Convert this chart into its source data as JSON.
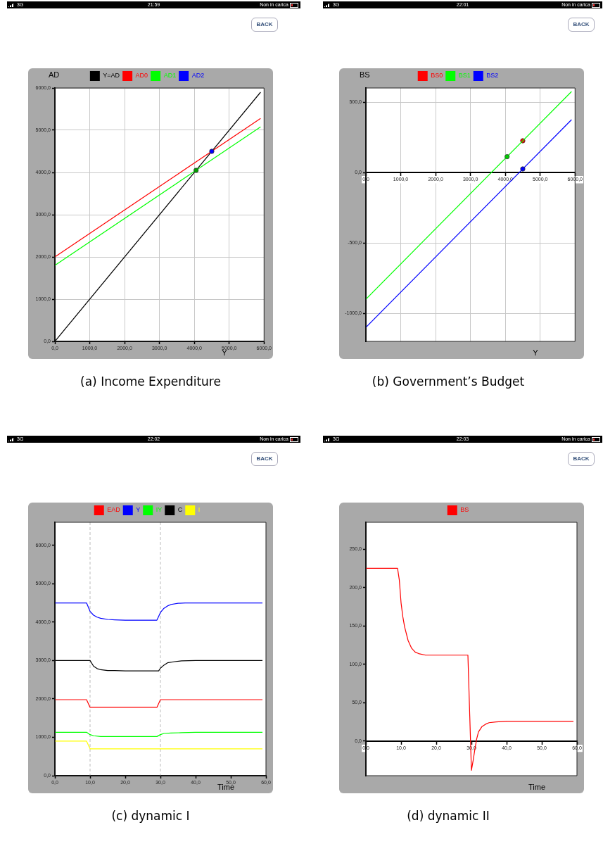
{
  "chart_data": [
    {
      "type": "line",
      "title": "(a) Income Expenditure",
      "xlabel": "Y",
      "ylabel": "AD",
      "annotations": [
        "3G",
        "21:59",
        "Non in carica",
        "BACK"
      ],
      "series": [
        {
          "name": "Y=AD",
          "color": "#000000",
          "x": [
            0,
            5900
          ],
          "values": [
            0,
            5900
          ]
        },
        {
          "name": "AD0",
          "color": "#ff0000",
          "x": [
            0,
            5900
          ],
          "values": [
            2000,
            5280
          ]
        },
        {
          "name": "AD1",
          "color": "#00ff00",
          "x": [
            0,
            5900
          ],
          "values": [
            1800,
            5080
          ]
        },
        {
          "type": "scatter",
          "color": "#00a000",
          "x": [
            4050
          ],
          "values": [
            4050
          ]
        },
        {
          "name": "AD2",
          "type": "scatter",
          "color": "#0000ff",
          "x": [
            4500
          ],
          "values": [
            4500
          ]
        }
      ],
      "xlim": [
        0,
        6000
      ],
      "xticks": [
        {
          "value": 0,
          "label": "0,0"
        },
        {
          "value": 1000,
          "label": "1000,0"
        },
        {
          "value": 2000,
          "label": "2000,0"
        },
        {
          "value": 3000,
          "label": "3000,0"
        },
        {
          "value": 4000,
          "label": "4000,0"
        },
        {
          "value": 5000,
          "label": "5000,0"
        },
        {
          "value": 6000,
          "label": "6000,0"
        }
      ],
      "ylim": [
        0,
        6000
      ],
      "yticks": [
        {
          "value": 0,
          "label": "0,0"
        },
        {
          "value": 1000,
          "label": "1000,0"
        },
        {
          "value": 2000,
          "label": "2000,0"
        },
        {
          "value": 3000,
          "label": "3000,0"
        },
        {
          "value": 4000,
          "label": "4000,0"
        },
        {
          "value": 5000,
          "label": "5000,0"
        },
        {
          "value": 6000,
          "label": "6000,0"
        }
      ],
      "grid": true,
      "legend": "top"
    },
    {
      "type": "line",
      "title": "(b) Government’s Budget",
      "xlabel": "Y",
      "ylabel": "BS",
      "annotations": [
        "3G",
        "22:01",
        "Non in carica",
        "BACK"
      ],
      "series": [
        {
          "name": "BS0",
          "type": "scatter",
          "color": "#ff0000",
          "x": [
            4500
          ],
          "values": [
            225
          ]
        },
        {
          "name": "BS1",
          "color": "#00ff00",
          "x": [
            0,
            5900
          ],
          "values": [
            -900,
            575
          ]
        },
        {
          "name": "BS2",
          "color": "#0000ff",
          "x": [
            0,
            5900
          ],
          "values": [
            -1100,
            375
          ]
        },
        {
          "type": "scatter",
          "color": "#00cc00",
          "x": [
            4050
          ],
          "values": [
            112
          ]
        },
        {
          "type": "scatter",
          "color": "#0000ff",
          "x": [
            4500
          ],
          "values": [
            25
          ]
        }
      ],
      "xlim": [
        0,
        6000
      ],
      "xticks": [
        {
          "value": 0,
          "label": "0,0"
        },
        {
          "value": 1000,
          "label": "1000,0"
        },
        {
          "value": 2000,
          "label": "2000,0"
        },
        {
          "value": 3000,
          "label": "3000,0"
        },
        {
          "value": 4000,
          "label": "4000,0"
        },
        {
          "value": 5000,
          "label": "5000,0"
        },
        {
          "value": 6000,
          "label": "6000,0"
        }
      ],
      "ylim": [
        -1200,
        600
      ],
      "yticks": [
        {
          "value": -1000,
          "label": "-1000,0"
        },
        {
          "value": -500,
          "label": "-500,0"
        },
        {
          "value": 0,
          "label": "0,0"
        },
        {
          "value": 500,
          "label": "500,0"
        }
      ],
      "grid": true,
      "legend": "top"
    },
    {
      "type": "line",
      "title": "(c) dynamic I",
      "xlabel": "Time",
      "annotations": [
        "3G",
        "22:02",
        "Non in carica",
        "BACK"
      ],
      "series": [
        {
          "name": "EAD",
          "color": "#ff0000",
          "x": [
            0,
            9,
            10,
            29,
            30,
            59
          ],
          "values": [
            1980,
            1980,
            1780,
            1780,
            1980,
            1980
          ]
        },
        {
          "name": "Y",
          "color": "#0000ff",
          "x": [
            0,
            9,
            10,
            11,
            12,
            13,
            15,
            17,
            20,
            29,
            30,
            31,
            32,
            33,
            35,
            37,
            59
          ],
          "values": [
            4500,
            4500,
            4280,
            4180,
            4130,
            4100,
            4070,
            4060,
            4050,
            4050,
            4250,
            4360,
            4420,
            4460,
            4490,
            4500,
            4500
          ]
        },
        {
          "name": "IY",
          "color": "#00ff00",
          "x": [
            0,
            9,
            10,
            11,
            13,
            29,
            30,
            31,
            33,
            36,
            40,
            59
          ],
          "values": [
            1130,
            1130,
            1070,
            1040,
            1020,
            1020,
            1070,
            1100,
            1110,
            1120,
            1130,
            1130
          ]
        },
        {
          "name": "C",
          "color": "#000000",
          "x": [
            0,
            10,
            11,
            12,
            13,
            15,
            17,
            20,
            29.5,
            30,
            31,
            32,
            34,
            36,
            40,
            59
          ],
          "values": [
            3000,
            3000,
            2850,
            2790,
            2760,
            2740,
            2740,
            2730,
            2730,
            2800,
            2880,
            2940,
            2970,
            2990,
            3000,
            3000
          ]
        },
        {
          "name": "I",
          "color": "#ffff00",
          "x": [
            0,
            9,
            10,
            59
          ],
          "values": [
            900,
            900,
            700,
            700
          ]
        }
      ],
      "xlim": [
        0,
        60
      ],
      "xticks": [
        {
          "value": 0,
          "label": "0,0"
        },
        {
          "value": 10,
          "label": "10,0"
        },
        {
          "value": 20,
          "label": "20,0"
        },
        {
          "value": 30,
          "label": "30,0"
        },
        {
          "value": 40,
          "label": "40,0"
        },
        {
          "value": 50,
          "label": "50,0"
        },
        {
          "value": 60,
          "label": "60,0"
        }
      ],
      "ylim": [
        0,
        6600
      ],
      "yticks": [
        {
          "value": 0,
          "label": "0,0"
        },
        {
          "value": 1000,
          "label": "1000,0"
        },
        {
          "value": 2000,
          "label": "2000,0"
        },
        {
          "value": 3000,
          "label": "3000,0"
        },
        {
          "value": 4000,
          "label": "4000,0"
        },
        {
          "value": 5000,
          "label": "5000,0"
        },
        {
          "value": 6000,
          "label": "6000,0"
        }
      ],
      "ref_lines": [
        {
          "axis": "x",
          "value": 10,
          "color": "#bbbbbb",
          "line_style": "dashed"
        },
        {
          "axis": "x",
          "value": 30,
          "color": "#bbbbbb",
          "line_style": "dashed"
        }
      ],
      "legend": "top"
    },
    {
      "type": "line",
      "title": "(d) dynamic II",
      "xlabel": "Time",
      "annotations": [
        "3G",
        "22:03",
        "Non in carica",
        "BACK"
      ],
      "series": [
        {
          "name": "BS",
          "color": "#ff0000",
          "x": [
            0,
            9,
            9.5,
            10,
            10.5,
            11,
            12,
            13,
            14,
            15,
            17,
            20,
            29,
            30,
            30.5,
            31,
            31.5,
            32,
            33,
            34,
            35,
            37,
            40,
            59
          ],
          "values": [
            225,
            225,
            210,
            180,
            162,
            149,
            131,
            121,
            116,
            114,
            112,
            112,
            112,
            -38,
            -25,
            -10,
            3,
            12,
            19,
            22,
            24,
            25,
            26,
            26
          ]
        }
      ],
      "xlim": [
        0,
        60
      ],
      "xticks": [
        {
          "value": 0,
          "label": "0,0"
        },
        {
          "value": 10,
          "label": "10,0"
        },
        {
          "value": 20,
          "label": "20,0"
        },
        {
          "value": 30,
          "label": "30,0"
        },
        {
          "value": 40,
          "label": "40,0"
        },
        {
          "value": 50,
          "label": "50,0"
        },
        {
          "value": 60,
          "label": "60,0"
        }
      ],
      "ylim": [
        -45,
        285
      ],
      "yticks": [
        {
          "value": 0,
          "label": "0,0"
        },
        {
          "value": 50,
          "label": "50,0"
        },
        {
          "value": 100,
          "label": "100,0"
        },
        {
          "value": 150,
          "label": "150,0"
        },
        {
          "value": 200,
          "label": "200,0"
        },
        {
          "value": 250,
          "label": "250,0"
        }
      ],
      "legend": "top"
    }
  ]
}
